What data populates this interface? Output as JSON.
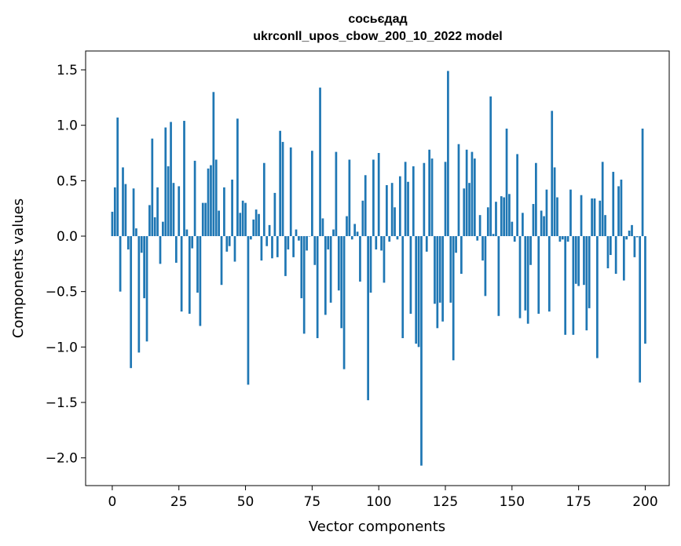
{
  "chart_data": {
    "type": "bar",
    "title_line1": "сосьєдад",
    "title_line2": "ukrconll_upos_cbow_200_10_2022 model",
    "xlabel": "Vector components",
    "ylabel": "Components values",
    "xlim": [
      -10,
      209
    ],
    "ylim": [
      -2.25,
      1.67
    ],
    "xticks": [
      0,
      25,
      50,
      75,
      100,
      125,
      150,
      175,
      200
    ],
    "yticks": [
      -2.0,
      -1.5,
      -1.0,
      -0.5,
      0.0,
      0.5,
      1.0,
      1.5
    ],
    "ytick_labels": [
      "−2.0",
      "−1.5",
      "−1.0",
      "−0.5",
      "0.0",
      "0.5",
      "1.0",
      "1.5"
    ],
    "bar_color": "#1f77b4",
    "values": [
      0.22,
      0.44,
      1.07,
      -0.5,
      0.62,
      0.47,
      -0.12,
      -1.19,
      0.43,
      0.07,
      -1.05,
      -0.15,
      -0.56,
      -0.95,
      0.28,
      0.88,
      0.17,
      0.44,
      -0.25,
      0.13,
      0.98,
      0.63,
      1.03,
      0.48,
      -0.24,
      0.45,
      -0.68,
      1.04,
      0.06,
      -0.7,
      -0.11,
      0.68,
      -0.51,
      -0.81,
      0.3,
      0.3,
      0.61,
      0.64,
      1.3,
      0.69,
      0.23,
      -0.44,
      0.44,
      -0.14,
      -0.09,
      0.51,
      -0.23,
      1.06,
      0.21,
      0.32,
      0.3,
      -1.34,
      -0.03,
      0.15,
      0.24,
      0.2,
      -0.22,
      0.66,
      -0.09,
      0.1,
      -0.2,
      0.39,
      -0.19,
      0.95,
      0.85,
      -0.36,
      -0.12,
      0.8,
      -0.19,
      0.06,
      -0.04,
      -0.56,
      -0.88,
      -0.13,
      0.0,
      0.77,
      -0.26,
      -0.92,
      1.34,
      0.16,
      -0.71,
      -0.12,
      -0.6,
      0.06,
      0.76,
      -0.49,
      -0.83,
      -1.2,
      0.18,
      0.69,
      -0.03,
      0.11,
      0.04,
      -0.41,
      0.32,
      0.55,
      -1.48,
      -0.51,
      0.69,
      -0.12,
      0.75,
      -0.13,
      -0.42,
      0.46,
      -0.05,
      0.48,
      0.26,
      -0.03,
      0.54,
      -0.92,
      0.67,
      0.49,
      -0.7,
      0.63,
      -0.97,
      -1.0,
      -2.07,
      0.66,
      -0.14,
      0.78,
      0.7,
      -0.61,
      -0.83,
      -0.6,
      -0.77,
      0.67,
      1.49,
      -0.6,
      -1.12,
      -0.15,
      0.83,
      -0.34,
      0.43,
      0.78,
      0.48,
      0.76,
      0.7,
      -0.04,
      0.19,
      -0.22,
      -0.54,
      0.26,
      1.26,
      0.02,
      0.31,
      -0.72,
      0.36,
      0.35,
      0.97,
      0.38,
      0.13,
      -0.05,
      0.74,
      -0.74,
      0.21,
      -0.67,
      -0.79,
      -0.26,
      0.29,
      0.66,
      -0.7,
      0.23,
      0.18,
      0.42,
      -0.68,
      1.13,
      0.62,
      0.35,
      -0.05,
      -0.03,
      -0.89,
      -0.05,
      0.42,
      -0.89,
      -0.43,
      -0.45,
      0.37,
      -0.44,
      -0.85,
      -0.65,
      0.34,
      0.34,
      -1.1,
      0.32,
      0.67,
      0.19,
      -0.29,
      -0.17,
      0.58,
      -0.34,
      0.45,
      0.51,
      -0.4,
      -0.03,
      0.05,
      0.1,
      -0.19,
      -0.01,
      -1.32,
      0.97,
      -0.97
    ]
  }
}
